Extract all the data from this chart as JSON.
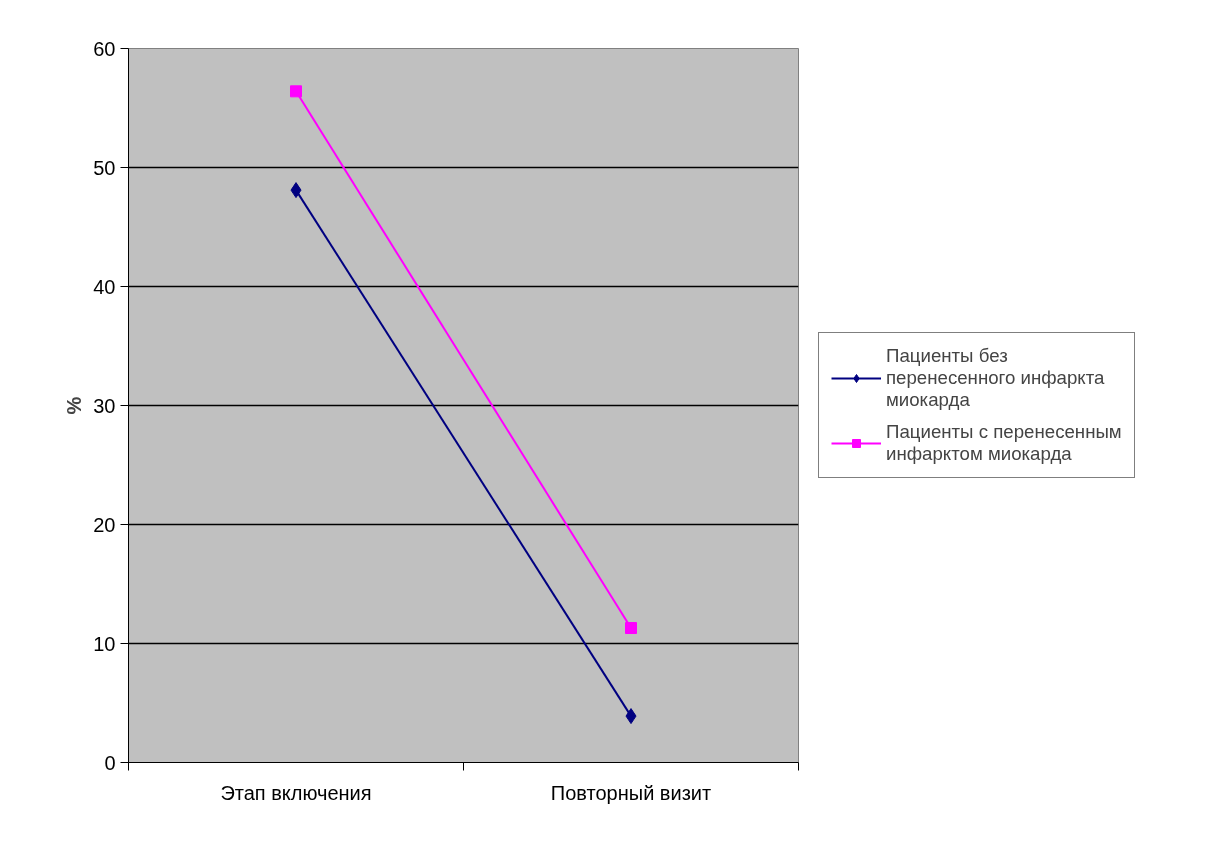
{
  "chart_data": {
    "type": "line",
    "ylabel": "%",
    "categories": [
      "Этап включения",
      "Повторный визит"
    ],
    "series": [
      {
        "name": "Пациенты без перенесенного инфаркта миокарда",
        "color": "#000080",
        "marker": "diamond",
        "values": [
          48.1,
          3.9
        ]
      },
      {
        "name": "Пациенты с перенесенным инфарктом миокарда",
        "color": "#ff00ff",
        "marker": "square",
        "values": [
          56.4,
          11.3
        ]
      }
    ],
    "ylim": [
      0,
      60
    ],
    "yticks": [
      0,
      10,
      20,
      30,
      40,
      50,
      60
    ],
    "grid": "y",
    "legend": "right",
    "line_style": "solid"
  }
}
